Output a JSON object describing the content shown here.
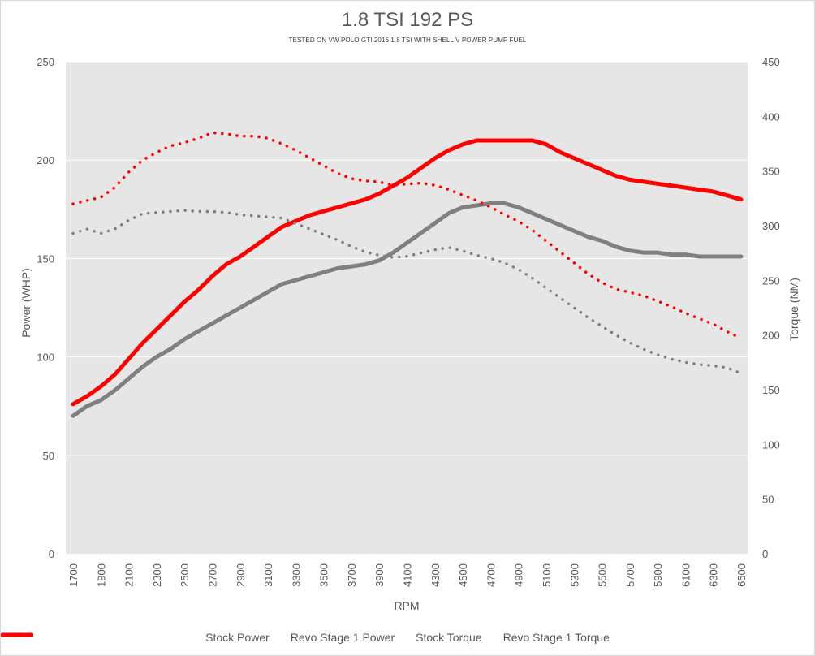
{
  "chart_data": {
    "type": "line",
    "title": "1.8 TSI 192 PS",
    "subtitle": "TESTED ON VW POLO GTI 2016 1.8 TSI WITH SHELL V POWER PUMP FUEL",
    "xlabel": "RPM",
    "ylabel_left": "Power (WHP)",
    "ylabel_right": "Torque (NM)",
    "ylim_left": [
      0,
      250
    ],
    "ylim_right": [
      0,
      450
    ],
    "yticks_left": [
      "0",
      "50",
      "100",
      "150",
      "200",
      "250"
    ],
    "yticks_right": [
      "0",
      "50",
      "100",
      "150",
      "200",
      "250",
      "300",
      "350",
      "400",
      "450"
    ],
    "x_ticks": [
      "1700",
      "1900",
      "2100",
      "2300",
      "2500",
      "2700",
      "2900",
      "3100",
      "3300",
      "3500",
      "3700",
      "3900",
      "4100",
      "4300",
      "4500",
      "4700",
      "4900",
      "5100",
      "5300",
      "5500",
      "5700",
      "5900",
      "6100",
      "6300",
      "6500"
    ],
    "x": [
      1700,
      1800,
      1900,
      2000,
      2100,
      2200,
      2300,
      2400,
      2500,
      2600,
      2700,
      2800,
      2900,
      3000,
      3100,
      3200,
      3300,
      3400,
      3500,
      3600,
      3700,
      3800,
      3900,
      4000,
      4100,
      4200,
      4300,
      4400,
      4500,
      4600,
      4700,
      4800,
      4900,
      5000,
      5100,
      5200,
      5300,
      5400,
      5500,
      5600,
      5700,
      5800,
      5900,
      6000,
      6100,
      6200,
      6300,
      6400,
      6500
    ],
    "grid": true,
    "legend_position": "bottom",
    "series": [
      {
        "name": "Stock Power",
        "axis": "left",
        "style": "solid",
        "color": "#808080",
        "values": [
          70,
          75,
          78,
          83,
          89,
          95,
          100,
          104,
          109,
          113,
          117,
          121,
          125,
          129,
          133,
          137,
          139,
          141,
          143,
          145,
          146,
          147,
          149,
          153,
          158,
          163,
          168,
          173,
          176,
          177,
          178,
          178,
          176,
          173,
          170,
          167,
          164,
          161,
          159,
          156,
          154,
          153,
          153,
          152,
          152,
          151,
          151,
          151,
          151
        ]
      },
      {
        "name": "Revo Stage 1 Power",
        "axis": "left",
        "style": "solid",
        "color": "#ff0000",
        "values": [
          76,
          80,
          85,
          91,
          99,
          107,
          114,
          121,
          128,
          134,
          141,
          147,
          151,
          156,
          161,
          166,
          169,
          172,
          174,
          176,
          178,
          180,
          183,
          187,
          191,
          196,
          201,
          205,
          208,
          210,
          210,
          210,
          210,
          210,
          208,
          204,
          201,
          198,
          195,
          192,
          190,
          189,
          188,
          187,
          186,
          185,
          184,
          182,
          180
        ]
      },
      {
        "name": "Stock Torque",
        "axis": "right",
        "style": "dotted",
        "color": "#808080",
        "values": [
          293,
          297,
          293,
          297,
          305,
          311,
          312,
          313,
          314,
          313,
          313,
          312,
          310,
          309,
          308,
          307,
          302,
          297,
          292,
          287,
          281,
          276,
          273,
          271,
          272,
          275,
          278,
          280,
          277,
          273,
          270,
          266,
          260,
          252,
          243,
          234,
          225,
          216,
          208,
          200,
          193,
          187,
          182,
          178,
          175,
          173,
          172,
          170,
          165
        ]
      },
      {
        "name": "Revo Stage 1 Torque",
        "axis": "right",
        "style": "dotted",
        "color": "#ff0000",
        "values": [
          320,
          323,
          326,
          335,
          349,
          360,
          367,
          373,
          376,
          380,
          385,
          384,
          382,
          382,
          380,
          375,
          369,
          362,
          355,
          348,
          343,
          341,
          340,
          337,
          338,
          339,
          337,
          333,
          328,
          323,
          317,
          310,
          304,
          296,
          286,
          276,
          266,
          256,
          248,
          242,
          239,
          236,
          231,
          226,
          220,
          215,
          210,
          203,
          197
        ]
      }
    ]
  }
}
